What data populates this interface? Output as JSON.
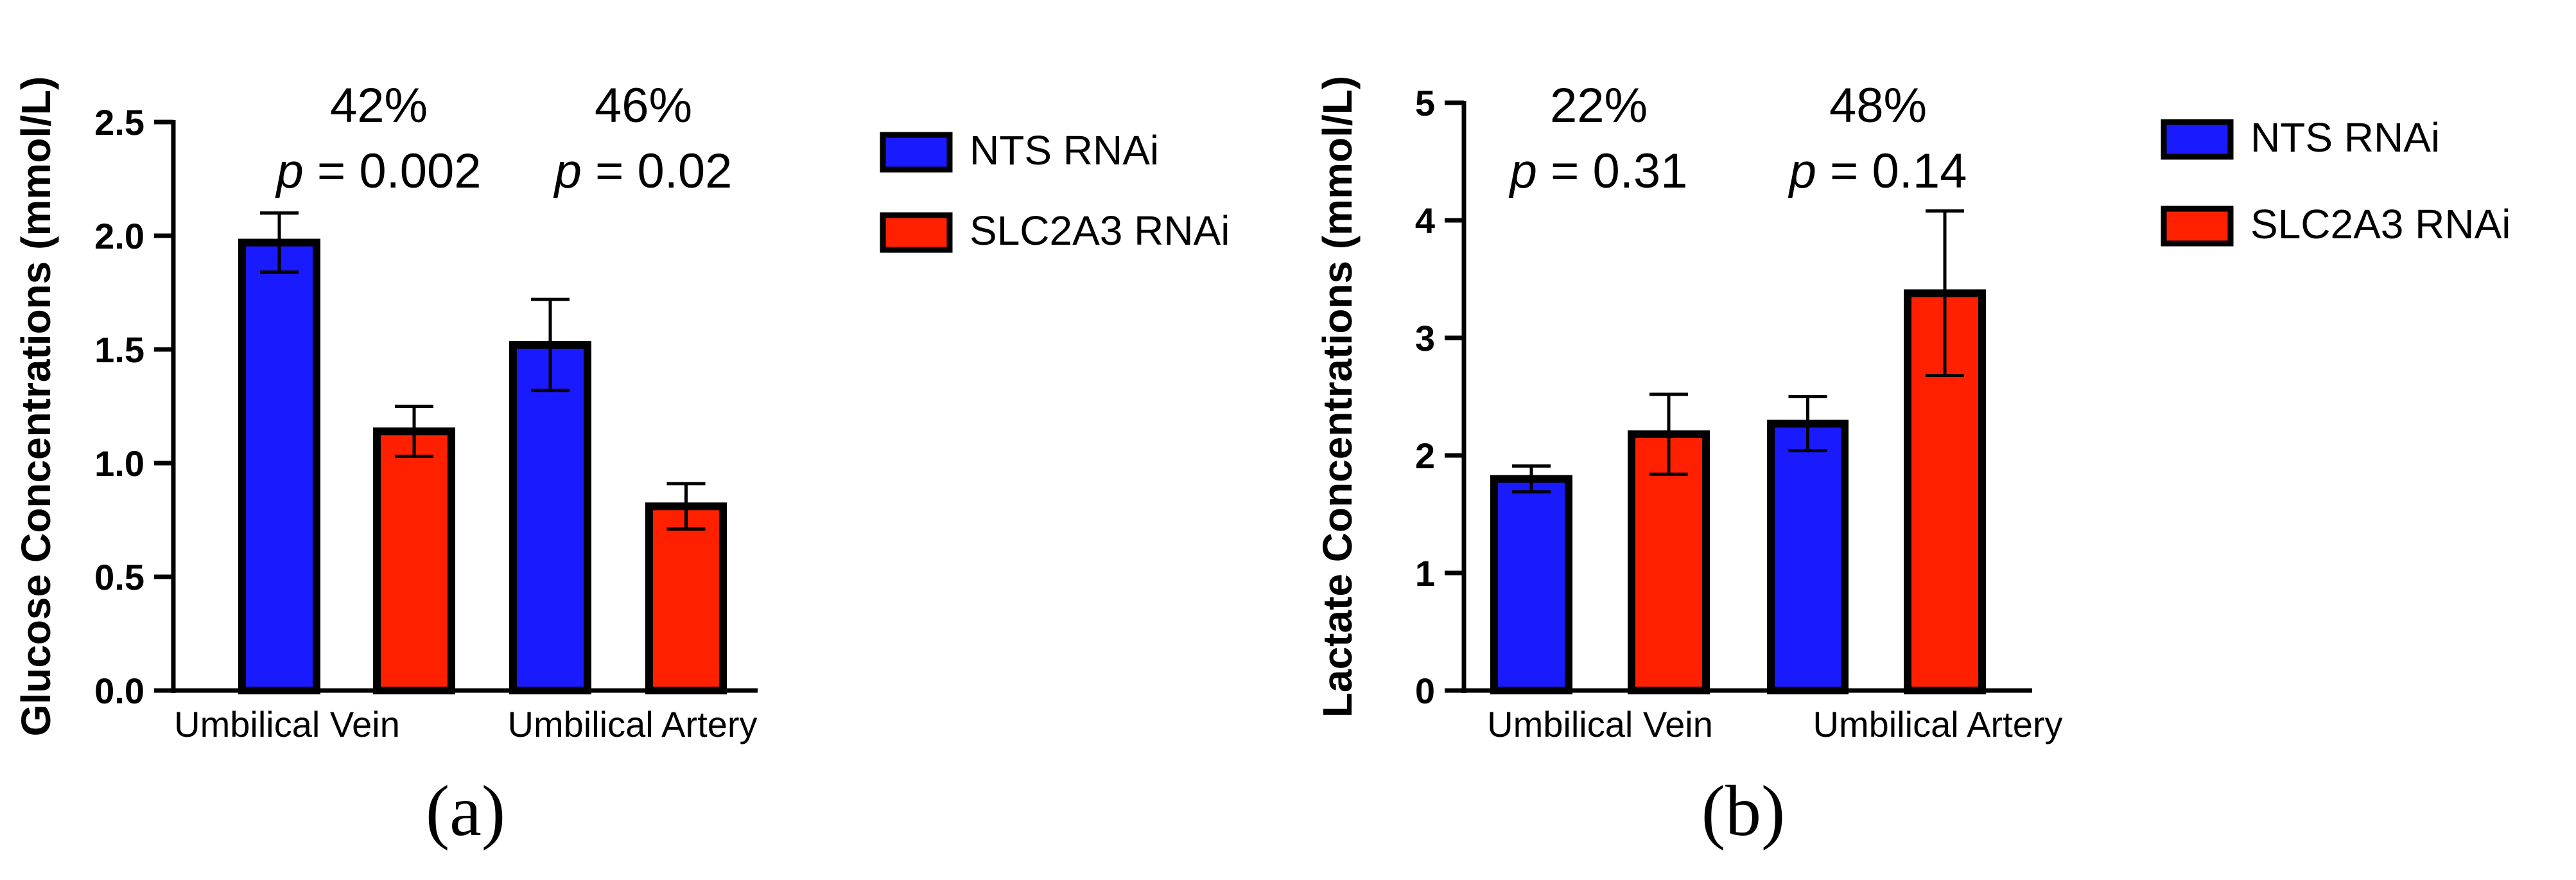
{
  "chart_data": [
    {
      "type": "bar",
      "panel_label": "(a)",
      "categories": [
        "Umbilical Vein",
        "Umbilical Artery"
      ],
      "series": [
        {
          "name": "NTS RNAi",
          "color": "#1a1aff",
          "values": [
            1.97,
            1.52
          ],
          "errors": [
            0.13,
            0.2
          ]
        },
        {
          "name": "SLC2A3 RNAi",
          "color": "#ff2000",
          "values": [
            1.14,
            0.81
          ],
          "errors": [
            0.11,
            0.1
          ]
        }
      ],
      "ylabel": "Glucose Concentrations (mmol/L)",
      "xlabel": "",
      "ylim": [
        0,
        2.5
      ],
      "yticks": [
        0.0,
        0.5,
        1.0,
        1.5,
        2.0,
        2.5
      ],
      "ytick_labels": [
        "0.0",
        "0.5",
        "1.0",
        "1.5",
        "2.0",
        "2.5"
      ],
      "annotations": [
        {
          "percent": "42%",
          "p_label": "p",
          "p_value": "= 0.002"
        },
        {
          "percent": "46%",
          "p_label": "p",
          "p_value": "= 0.02"
        }
      ],
      "legend_position": "right"
    },
    {
      "type": "bar",
      "panel_label": "(b)",
      "categories": [
        "Umbilical Vein",
        "Umbilical Artery"
      ],
      "series": [
        {
          "name": "NTS RNAi",
          "color": "#1a1aff",
          "values": [
            1.8,
            2.27
          ],
          "errors": [
            0.11,
            0.23
          ]
        },
        {
          "name": "SLC2A3 RNAi",
          "color": "#ff2000",
          "values": [
            2.18,
            3.38
          ],
          "errors": [
            0.34,
            0.7
          ]
        }
      ],
      "ylabel": "Lactate Concentrations (mmol/L)",
      "xlabel": "",
      "ylim": [
        0,
        5
      ],
      "yticks": [
        0,
        1,
        2,
        3,
        4,
        5
      ],
      "ytick_labels": [
        "0",
        "1",
        "2",
        "3",
        "4",
        "5"
      ],
      "annotations": [
        {
          "percent": "22%",
          "p_label": "p",
          "p_value": "= 0.31"
        },
        {
          "percent": "48%",
          "p_label": "p",
          "p_value": "= 0.14"
        }
      ],
      "legend_position": "right"
    }
  ]
}
